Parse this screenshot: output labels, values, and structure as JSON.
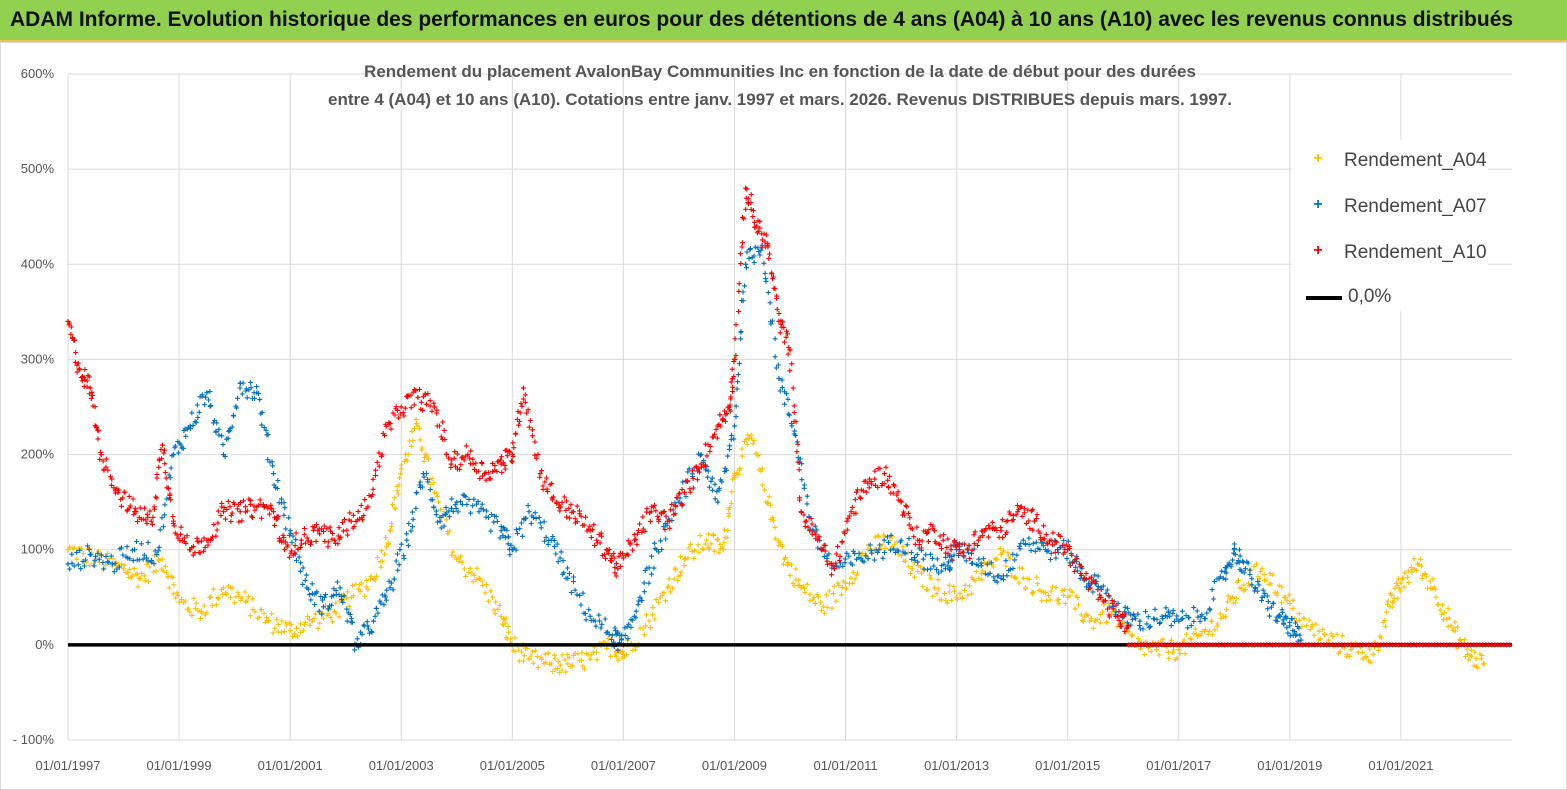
{
  "banner": {
    "title": "ADAM Informe. Evolution historique des performances en euros pour des détentions de 4 ans (A04) à 10 ans (A10) avec les revenus connus distribués"
  },
  "chart_data": {
    "type": "scatter",
    "title_line1": "Rendement du placement AvalonBay Communities Inc en fonction de la date de début pour des durées",
    "title_line2": "entre 4 (A04) et 10 ans (A10). Cotations entre janv. 1997 et mars. 2026. Revenus DISTRIBUES depuis mars. 1997.",
    "ylim": [
      -100,
      600
    ],
    "y_ticks": [
      -100,
      0,
      100,
      200,
      300,
      400,
      500,
      600
    ],
    "y_tick_labels": [
      "- 100%",
      "0%",
      "100%",
      "200%",
      "300%",
      "400%",
      "500%",
      "600%"
    ],
    "x_range": [
      1997.0,
      2023.0
    ],
    "x_ticks": [
      1997,
      1999,
      2001,
      2003,
      2005,
      2007,
      2009,
      2011,
      2013,
      2015,
      2017,
      2019,
      2021
    ],
    "x_tick_labels": [
      "01/01/1997",
      "01/01/1999",
      "01/01/2001",
      "01/01/2003",
      "01/01/2005",
      "01/01/2007",
      "01/01/2009",
      "01/01/2011",
      "01/01/2013",
      "01/01/2015",
      "01/01/2017",
      "01/01/2019",
      "01/01/2021"
    ],
    "grid": true,
    "legend_position": "top-right",
    "reference_line": {
      "label": "0,0%",
      "y": 0,
      "color": "#000000"
    },
    "series": [
      {
        "name": "Rendement_A04",
        "color": "#ffc000",
        "x": [
          1997.0,
          1997.5,
          1998.0,
          1998.3,
          1998.7,
          1999.0,
          1999.4,
          1999.8,
          2000.2,
          2000.6,
          2001.0,
          2001.4,
          2001.8,
          2002.1,
          2002.5,
          2002.8,
          2003.0,
          2003.3,
          2003.6,
          2004.0,
          2004.4,
          2004.8,
          2005.0,
          2005.3,
          2005.7,
          2006.0,
          2006.4,
          2006.8,
          2007.0,
          2007.4,
          2007.8,
          2008.1,
          2008.5,
          2008.8,
          2009.0,
          2009.3,
          2009.6,
          2009.9,
          2010.2,
          2010.6,
          2011.0,
          2011.4,
          2011.8,
          2012.2,
          2012.6,
          2013.0,
          2013.4,
          2013.8,
          2014.2,
          2014.6,
          2015.0,
          2015.4,
          2015.8,
          2016.2,
          2016.6,
          2017.0,
          2017.4,
          2017.8,
          2018.1,
          2018.5,
          2018.9,
          2019.3,
          2019.7,
          2020.1,
          2020.5,
          2020.8,
          2021.0,
          2021.3,
          2021.6,
          2021.9,
          2022.2,
          2022.5
        ],
        "y": [
          100,
          90,
          80,
          70,
          90,
          45,
          35,
          60,
          45,
          25,
          15,
          25,
          35,
          50,
          70,
          120,
          185,
          230,
          160,
          90,
          70,
          30,
          0,
          -15,
          -20,
          -20,
          -15,
          0,
          -10,
          20,
          60,
          90,
          110,
          100,
          180,
          220,
          150,
          90,
          60,
          40,
          65,
          100,
          110,
          80,
          60,
          50,
          70,
          95,
          70,
          55,
          50,
          25,
          35,
          0,
          -5,
          -5,
          10,
          30,
          60,
          80,
          50,
          20,
          5,
          -5,
          -10,
          40,
          65,
          85,
          60,
          20,
          -10,
          -20
        ]
      },
      {
        "name": "Rendement_A07",
        "color": "#0070c0",
        "x": [
          1997.0,
          1997.4,
          1997.8,
          1998.2,
          1998.6,
          1998.9,
          1999.2,
          1999.5,
          1999.8,
          2000.1,
          2000.4,
          2000.7,
          2001.0,
          2001.3,
          2001.6,
          2001.9,
          2002.2,
          2002.5,
          2002.8,
          2003.1,
          2003.4,
          2003.7,
          2004.0,
          2004.4,
          2004.8,
          2005.0,
          2005.3,
          2005.7,
          2006.0,
          2006.4,
          2006.8,
          2007.0,
          2007.3,
          2007.6,
          2008.0,
          2008.4,
          2008.7,
          2009.0,
          2009.2,
          2009.5,
          2009.8,
          2010.1,
          2010.4,
          2010.8,
          2011.2,
          2011.6,
          2012.0,
          2012.4,
          2012.8,
          2013.0,
          2013.4,
          2013.8,
          2014.2,
          2014.6,
          2015.0,
          2015.3,
          2015.6,
          2016.0,
          2016.3,
          2016.7,
          2017.0,
          2017.4,
          2017.8,
          2018.0,
          2018.2,
          2018.5,
          2018.8,
          2019.0,
          2019.2
        ],
        "y": [
          85,
          95,
          85,
          100,
          95,
          200,
          230,
          265,
          200,
          275,
          265,
          180,
          120,
          60,
          40,
          60,
          0,
          25,
          60,
          110,
          180,
          130,
          150,
          140,
          120,
          100,
          140,
          110,
          70,
          30,
          10,
          0,
          50,
          100,
          150,
          200,
          150,
          230,
          400,
          420,
          280,
          220,
          120,
          80,
          90,
          100,
          110,
          90,
          80,
          100,
          90,
          70,
          110,
          100,
          100,
          70,
          60,
          30,
          25,
          30,
          25,
          30,
          70,
          100,
          80,
          50,
          30,
          20,
          5
        ]
      },
      {
        "name": "Rendement_A10",
        "color": "#ff0000",
        "x": [
          1997.0,
          1997.2,
          1997.4,
          1997.6,
          1997.9,
          1998.2,
          1998.5,
          1998.7,
          1998.9,
          1999.2,
          1999.5,
          1999.8,
          2000.1,
          2000.4,
          2000.7,
          2000.9,
          2001.2,
          2001.5,
          2001.8,
          2002.1,
          2002.4,
          2002.7,
          2003.0,
          2003.3,
          2003.6,
          2003.9,
          2004.2,
          2004.5,
          2004.8,
          2005.0,
          2005.2,
          2005.5,
          2005.8,
          2006.1,
          2006.4,
          2006.7,
          2006.9,
          2007.2,
          2007.5,
          2007.8,
          2008.1,
          2008.4,
          2008.7,
          2008.9,
          2009.0,
          2009.2,
          2009.4,
          2009.6,
          2009.8,
          2010.0,
          2010.2,
          2010.5,
          2010.8,
          2011.1,
          2011.4,
          2011.7,
          2012.0,
          2012.3,
          2012.6,
          2012.9,
          2013.2,
          2013.5,
          2013.8,
          2014.1,
          2014.4,
          2014.7,
          2015.0,
          2015.3,
          2015.6,
          2015.9,
          2016.1
        ],
        "y": [
          340,
          290,
          270,
          200,
          160,
          140,
          130,
          210,
          130,
          100,
          110,
          140,
          140,
          145,
          140,
          100,
          110,
          120,
          110,
          130,
          145,
          220,
          250,
          260,
          250,
          190,
          200,
          180,
          190,
          200,
          270,
          180,
          150,
          140,
          120,
          100,
          80,
          110,
          140,
          130,
          160,
          190,
          230,
          250,
          300,
          480,
          440,
          420,
          340,
          310,
          140,
          110,
          80,
          140,
          170,
          180,
          150,
          110,
          120,
          100,
          100,
          120,
          120,
          140,
          130,
          110,
          100,
          70,
          50,
          30,
          20
        ]
      }
    ],
    "a10_zero_band": {
      "x_from": 2016.1,
      "x_to": 2023.0,
      "y": 0
    }
  }
}
